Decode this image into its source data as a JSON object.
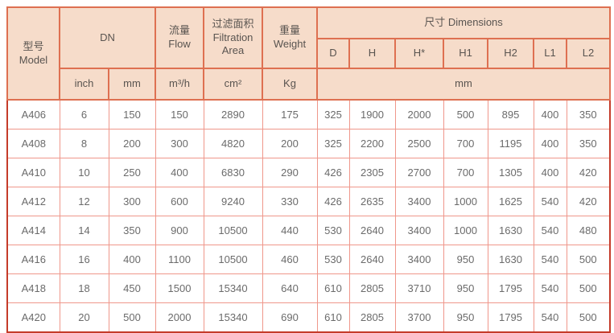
{
  "table": {
    "header": {
      "model": "型号\nModel",
      "dn": "DN",
      "flow": "流量\nFlow",
      "filtration_area": "过滤面积\nFiltration\nArea",
      "weight": "重量\nWeight",
      "dimensions": "尺寸 Dimensions",
      "dim_cols": [
        "D",
        "H",
        "H*",
        "H1",
        "H2",
        "L1",
        "L2"
      ],
      "units": {
        "inch": "inch",
        "mm": "mm",
        "flow": "m³/h",
        "area": "cm²",
        "weight": "Kg",
        "dims": "mm"
      }
    },
    "rows": [
      {
        "model": "A406",
        "inch": "6",
        "mm": "150",
        "flow": "150",
        "area": "2890",
        "weight": "175",
        "dims": [
          "325",
          "1900",
          "2000",
          "500",
          "895",
          "400",
          "350"
        ]
      },
      {
        "model": "A408",
        "inch": "8",
        "mm": "200",
        "flow": "300",
        "area": "4820",
        "weight": "200",
        "dims": [
          "325",
          "2200",
          "2500",
          "700",
          "1195",
          "400",
          "350"
        ]
      },
      {
        "model": "A410",
        "inch": "10",
        "mm": "250",
        "flow": "400",
        "area": "6830",
        "weight": "290",
        "dims": [
          "426",
          "2305",
          "2700",
          "700",
          "1305",
          "400",
          "420"
        ]
      },
      {
        "model": "A412",
        "inch": "12",
        "mm": "300",
        "flow": "600",
        "area": "9240",
        "weight": "330",
        "dims": [
          "426",
          "2635",
          "3400",
          "1000",
          "1625",
          "540",
          "420"
        ]
      },
      {
        "model": "A414",
        "inch": "14",
        "mm": "350",
        "flow": "900",
        "area": "10500",
        "weight": "440",
        "dims": [
          "530",
          "2640",
          "3400",
          "1000",
          "1630",
          "540",
          "480"
        ]
      },
      {
        "model": "A416",
        "inch": "16",
        "mm": "400",
        "flow": "1100",
        "area": "10500",
        "weight": "460",
        "dims": [
          "530",
          "2640",
          "3400",
          "950",
          "1630",
          "540",
          "500"
        ]
      },
      {
        "model": "A418",
        "inch": "18",
        "mm": "450",
        "flow": "1500",
        "area": "15340",
        "weight": "640",
        "dims": [
          "610",
          "2805",
          "3710",
          "950",
          "1795",
          "540",
          "500"
        ]
      },
      {
        "model": "A420",
        "inch": "20",
        "mm": "500",
        "flow": "2000",
        "area": "15340",
        "weight": "690",
        "dims": [
          "610",
          "2805",
          "3700",
          "950",
          "1795",
          "540",
          "500"
        ]
      }
    ]
  },
  "colors": {
    "header_bg": "#f6dcca",
    "outer_border": "#c53b29",
    "header_border": "#de7051",
    "data_border": "#ef978b",
    "header_text": "#595450",
    "data_text": "#6b6b6b"
  }
}
